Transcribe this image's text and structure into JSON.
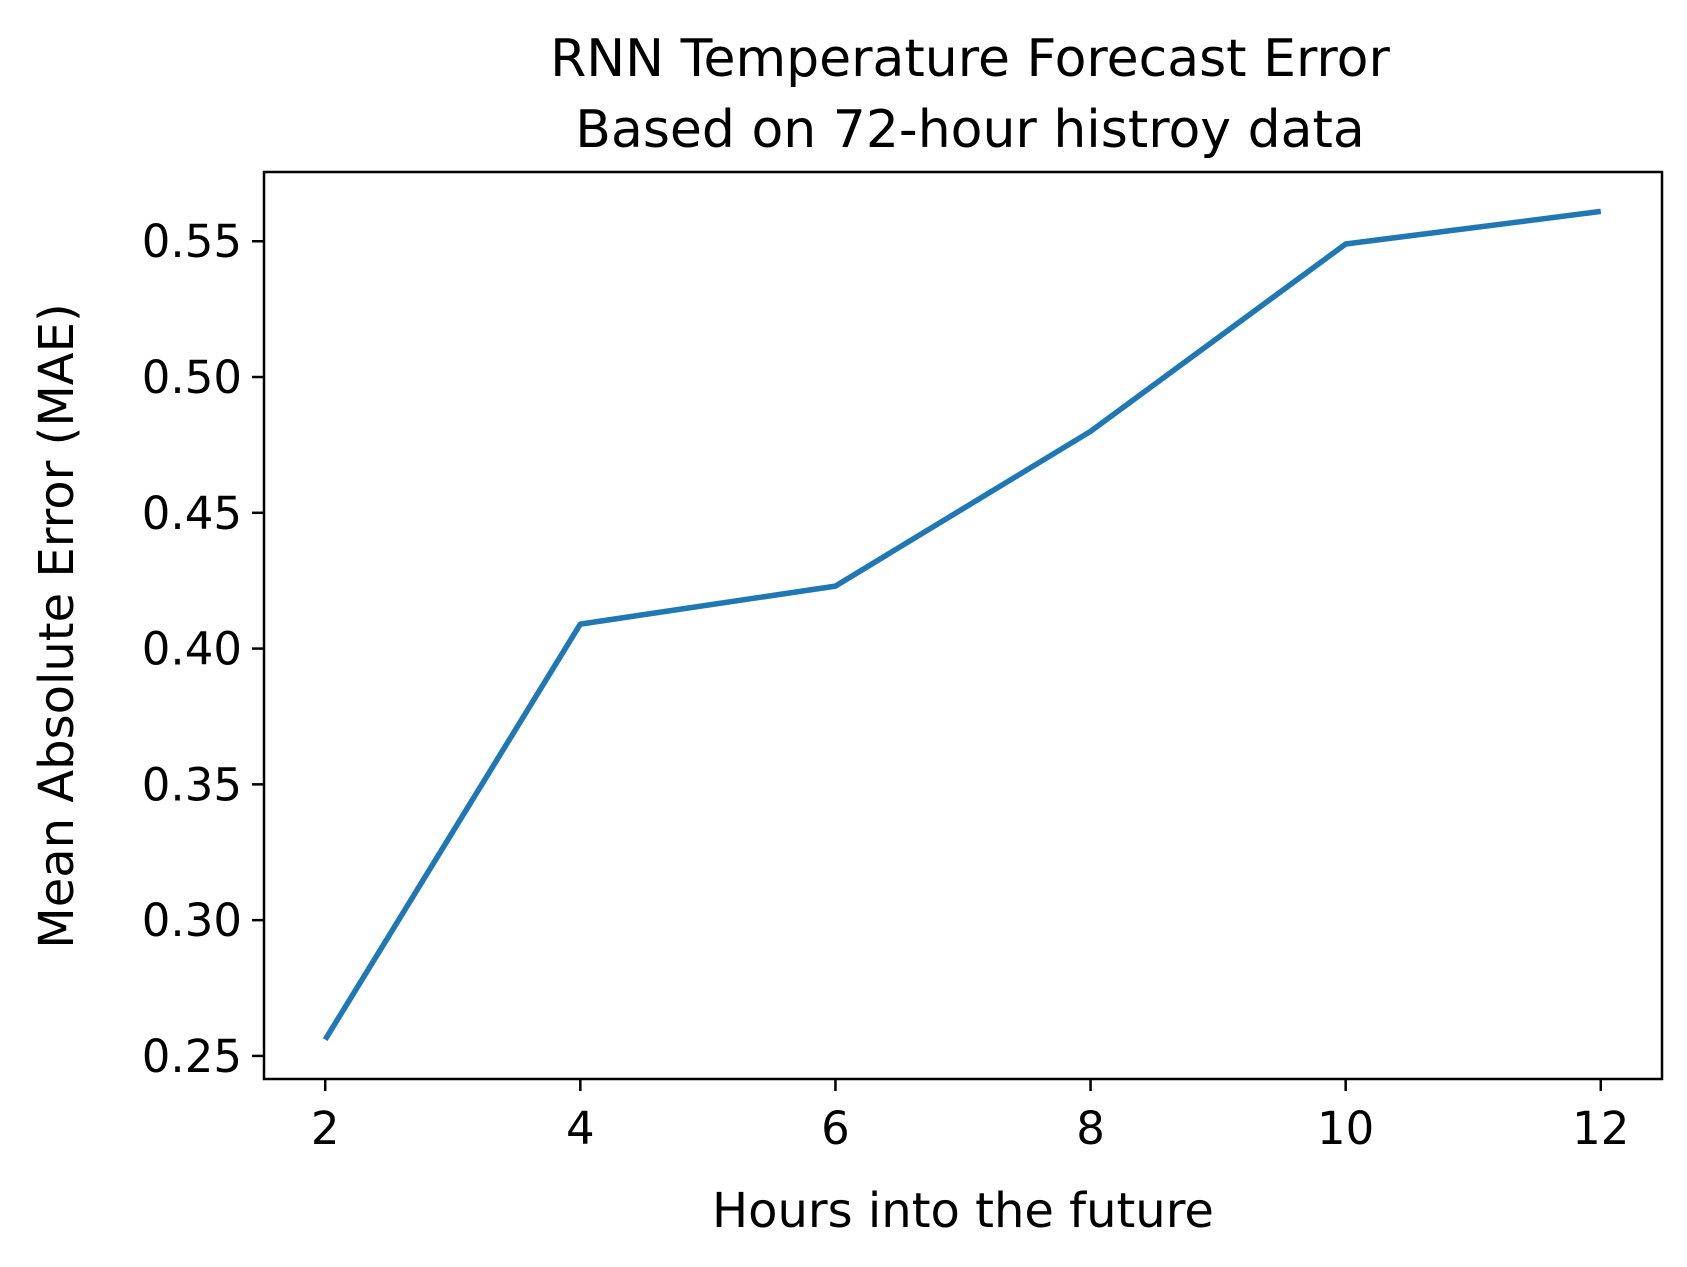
{
  "chart_data": {
    "type": "line",
    "title": "RNN Temperature Forecast Error",
    "subtitle": "Based on 72-hour histroy data",
    "xlabel": "Hours into the future",
    "ylabel": "Mean Absolute Error (MAE)",
    "xlim": [
      1.52,
      12.48
    ],
    "ylim": [
      0.2415,
      0.5755
    ],
    "x_ticks": [
      2,
      4,
      6,
      8,
      10,
      12
    ],
    "x_tick_labels": [
      "2",
      "4",
      "6",
      "8",
      "10",
      "12"
    ],
    "y_ticks": [
      0.25,
      0.3,
      0.35,
      0.4,
      0.45,
      0.5,
      0.55
    ],
    "y_tick_labels": [
      "0.25",
      "0.30",
      "0.35",
      "0.40",
      "0.45",
      "0.50",
      "0.55"
    ],
    "grid": false,
    "series": [
      {
        "color": "#1f77b4",
        "x": [
          2,
          4,
          6,
          8,
          10,
          12
        ],
        "y": [
          0.256,
          0.409,
          0.423,
          0.48,
          0.549,
          0.561
        ]
      }
    ]
  }
}
